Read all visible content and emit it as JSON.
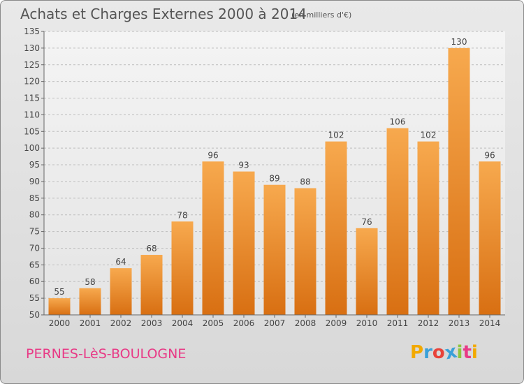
{
  "header": {
    "title": "Achats et Charges Externes 2000 à 2014",
    "subtitle": "(en milliers d'€)"
  },
  "footer": {
    "commune": "PERNES-LèS-BOULOGNE",
    "logo_letters": [
      "P",
      "r",
      "o",
      "x",
      "i",
      "t",
      "i"
    ],
    "logo_colors": [
      "#f2a900",
      "#3aa0d8",
      "#e8433a",
      "#3aa0d8",
      "#8dc63f",
      "#e83a86",
      "#f2a900"
    ]
  },
  "colors": {
    "bar_top": "#f7a94e",
    "bar_bottom": "#d86f12",
    "grid": "#bdbdbd",
    "text": "#444444"
  },
  "chart_data": {
    "type": "bar",
    "title": "Achats et Charges Externes 2000 à 2014",
    "subtitle": "(en milliers d'€)",
    "xlabel": "",
    "ylabel": "",
    "categories": [
      "2000",
      "2001",
      "2002",
      "2003",
      "2004",
      "2005",
      "2006",
      "2007",
      "2008",
      "2009",
      "2010",
      "2011",
      "2012",
      "2013",
      "2014"
    ],
    "values": [
      55,
      58,
      64,
      68,
      78,
      96,
      93,
      89,
      88,
      102,
      76,
      106,
      102,
      130,
      96
    ],
    "ylim": [
      50,
      135
    ],
    "yticks": [
      50,
      55,
      60,
      65,
      70,
      75,
      80,
      85,
      90,
      95,
      100,
      105,
      110,
      115,
      120,
      125,
      130,
      135
    ],
    "grid": true,
    "data_labels": true
  }
}
